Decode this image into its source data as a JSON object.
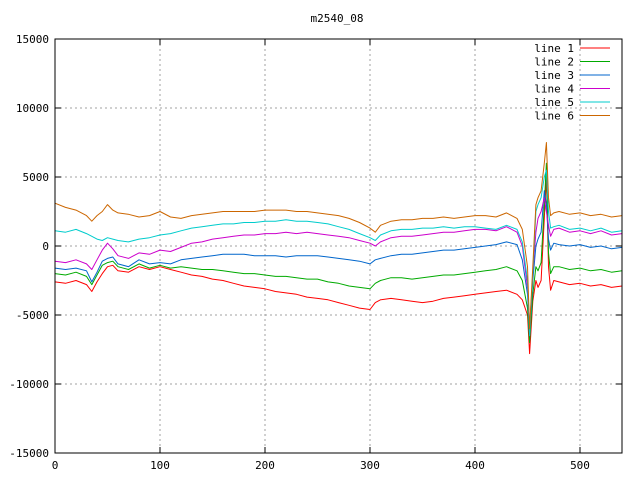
{
  "chart_data": {
    "type": "line",
    "title": "m2540_08",
    "xlabel": "",
    "ylabel": "",
    "xlim": [
      0,
      540
    ],
    "ylim": [
      -15000,
      15000
    ],
    "xticks": [
      0,
      100,
      200,
      300,
      400,
      500
    ],
    "yticks": [
      -15000,
      -10000,
      -5000,
      0,
      5000,
      10000,
      15000
    ],
    "xtick_labels": [
      "0",
      "100",
      "200",
      "300",
      "400",
      "500"
    ],
    "ytick_labels": [
      "-15000",
      "-10000",
      "-5000",
      "0",
      "5000",
      "10000",
      "15000"
    ],
    "grid": true,
    "legend_position": "top-right",
    "x": [
      0,
      10,
      20,
      30,
      35,
      40,
      45,
      50,
      55,
      60,
      70,
      80,
      90,
      100,
      110,
      120,
      130,
      140,
      150,
      160,
      170,
      180,
      190,
      200,
      210,
      220,
      230,
      240,
      250,
      260,
      270,
      280,
      290,
      300,
      305,
      310,
      320,
      330,
      340,
      350,
      360,
      370,
      380,
      390,
      400,
      410,
      420,
      430,
      440,
      445,
      450,
      452,
      455,
      458,
      460,
      463,
      466,
      468,
      470,
      472,
      475,
      480,
      490,
      500,
      510,
      520,
      530,
      540
    ],
    "series": [
      {
        "name": "line 1",
        "color": "#ff0000",
        "values": [
          -2600,
          -2700,
          -2500,
          -2800,
          -3300,
          -2600,
          -2000,
          -1500,
          -1400,
          -1800,
          -1900,
          -1500,
          -1700,
          -1500,
          -1700,
          -1900,
          -2100,
          -2200,
          -2400,
          -2500,
          -2700,
          -2900,
          -3000,
          -3100,
          -3300,
          -3400,
          -3500,
          -3700,
          -3800,
          -3900,
          -4100,
          -4300,
          -4500,
          -4600,
          -4100,
          -3900,
          -3800,
          -3900,
          -4000,
          -4100,
          -4000,
          -3800,
          -3700,
          -3600,
          -3500,
          -3400,
          -3300,
          -3200,
          -3500,
          -3900,
          -5000,
          -7800,
          -4000,
          -2500,
          -3000,
          -2500,
          2000,
          5000,
          -1500,
          -3200,
          -2500,
          -2600,
          -2800,
          -2700,
          -2900,
          -2800,
          -3000,
          -2900
        ]
      },
      {
        "name": "line 2",
        "color": "#00aa00",
        "values": [
          -2000,
          -2100,
          -1900,
          -2200,
          -2800,
          -2100,
          -1400,
          -1200,
          -1100,
          -1500,
          -1700,
          -1300,
          -1600,
          -1400,
          -1600,
          -1500,
          -1600,
          -1700,
          -1700,
          -1800,
          -1900,
          -2000,
          -2000,
          -2100,
          -2200,
          -2200,
          -2300,
          -2400,
          -2400,
          -2600,
          -2700,
          -2900,
          -3000,
          -3100,
          -2700,
          -2500,
          -2300,
          -2300,
          -2400,
          -2300,
          -2200,
          -2100,
          -2100,
          -2000,
          -1900,
          -1800,
          -1700,
          -1500,
          -1800,
          -2500,
          -4500,
          -7000,
          -3500,
          -1500,
          -1800,
          -1200,
          3000,
          6000,
          -500,
          -2000,
          -1500,
          -1500,
          -1700,
          -1600,
          -1800,
          -1700,
          -1900,
          -1800
        ]
      },
      {
        "name": "line 3",
        "color": "#0066cc",
        "values": [
          -1600,
          -1700,
          -1600,
          -1800,
          -2600,
          -1900,
          -1100,
          -900,
          -800,
          -1300,
          -1500,
          -1000,
          -1300,
          -1200,
          -1300,
          -1000,
          -900,
          -800,
          -700,
          -600,
          -600,
          -600,
          -700,
          -700,
          -700,
          -800,
          -700,
          -700,
          -700,
          -800,
          -900,
          -1000,
          -1100,
          -1300,
          -1000,
          -900,
          -700,
          -600,
          -600,
          -500,
          -400,
          -300,
          -300,
          -200,
          -100,
          0,
          100,
          300,
          100,
          -1000,
          -3500,
          -6500,
          -2500,
          0,
          500,
          1000,
          4000,
          3000,
          500,
          -300,
          200,
          100,
          0,
          100,
          -100,
          0,
          -200,
          -100
        ]
      },
      {
        "name": "line 4",
        "color": "#cc00cc",
        "values": [
          -1100,
          -1200,
          -1000,
          -1300,
          -1700,
          -1000,
          -300,
          200,
          -200,
          -700,
          -900,
          -500,
          -600,
          -300,
          -400,
          -100,
          200,
          300,
          500,
          600,
          700,
          800,
          800,
          900,
          900,
          1000,
          900,
          1000,
          900,
          800,
          700,
          600,
          400,
          200,
          0,
          300,
          600,
          700,
          700,
          800,
          900,
          1000,
          1000,
          1100,
          1200,
          1200,
          1100,
          1400,
          1000,
          0,
          -3000,
          -6000,
          -2000,
          1000,
          2000,
          2500,
          3500,
          2500,
          1500,
          700,
          1200,
          1300,
          1000,
          1100,
          900,
          1100,
          800,
          900
        ]
      },
      {
        "name": "line 5",
        "color": "#00cccc",
        "values": [
          1100,
          1000,
          1200,
          900,
          700,
          500,
          400,
          600,
          500,
          400,
          300,
          500,
          600,
          800,
          900,
          1100,
          1300,
          1400,
          1500,
          1600,
          1600,
          1700,
          1700,
          1800,
          1800,
          1900,
          1800,
          1800,
          1700,
          1600,
          1400,
          1200,
          900,
          600,
          400,
          800,
          1100,
          1200,
          1200,
          1300,
          1300,
          1400,
          1300,
          1400,
          1400,
          1300,
          1200,
          1500,
          1200,
          300,
          -2500,
          -6500,
          -2000,
          2500,
          3000,
          3500,
          5000,
          5500,
          2500,
          1300,
          1400,
          1500,
          1200,
          1300,
          1100,
          1300,
          1000,
          1100
        ]
      },
      {
        "name": "line 6",
        "color": "#cc6600",
        "values": [
          3100,
          2800,
          2600,
          2200,
          1800,
          2200,
          2500,
          3000,
          2600,
          2400,
          2300,
          2100,
          2200,
          2500,
          2100,
          2000,
          2200,
          2300,
          2400,
          2500,
          2500,
          2500,
          2500,
          2600,
          2600,
          2600,
          2500,
          2500,
          2400,
          2300,
          2200,
          2000,
          1700,
          1300,
          1000,
          1500,
          1800,
          1900,
          1900,
          2000,
          2000,
          2100,
          2000,
          2100,
          2200,
          2200,
          2100,
          2400,
          2000,
          1200,
          -1500,
          -6000,
          -1500,
          3000,
          3500,
          4000,
          6000,
          7500,
          3500,
          2200,
          2400,
          2500,
          2300,
          2400,
          2200,
          2300,
          2100,
          2200
        ]
      }
    ]
  }
}
